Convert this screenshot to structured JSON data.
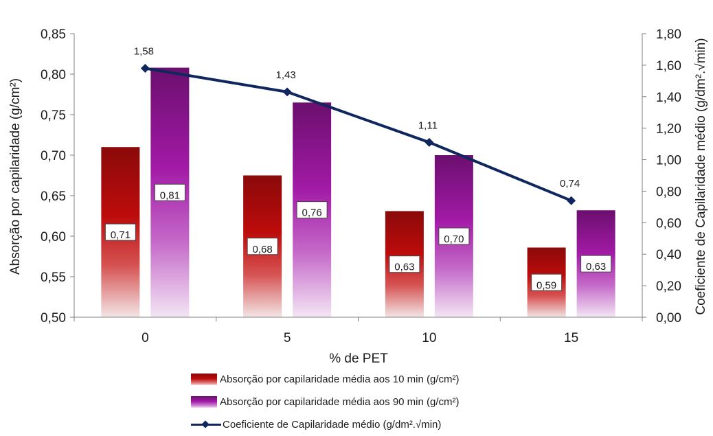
{
  "chart_data": {
    "type": "bar",
    "categories": [
      "0",
      "5",
      "10",
      "15"
    ],
    "xlabel": "% de PET",
    "ylabel": "Absorção por capilaridade (g/cm²)",
    "y2label": "Coeficiente de Capilaridade médio (g/dm².√min)",
    "ylim": [
      0.5,
      0.85
    ],
    "y2lim": [
      0,
      1.8
    ],
    "yticks": [
      "0,50",
      "0,55",
      "0,60",
      "0,65",
      "0,70",
      "0,75",
      "0,80",
      "0,85"
    ],
    "y2ticks": [
      "0,00",
      "0,20",
      "0,40",
      "0,60",
      "0,80",
      "1,00",
      "1,20",
      "1,40",
      "1,60",
      "1,80"
    ],
    "grid": false,
    "legend_position": "bottom",
    "series": [
      {
        "name": "Absorção por capilaridade média aos 10 min (g/cm²)",
        "kind": "bar",
        "axis": "left",
        "values": [
          0.71,
          0.675,
          0.631,
          0.586
        ],
        "labels": [
          "0,71",
          "0,68",
          "0,63",
          "0,59"
        ],
        "color": "#b30b0b"
      },
      {
        "name": "Absorção por capilaridade média aos 90 min (g/cm²)",
        "kind": "bar",
        "axis": "left",
        "values": [
          0.808,
          0.765,
          0.7,
          0.632
        ],
        "labels": [
          "0,81",
          "0,76",
          "0,70",
          "0,63"
        ],
        "color": "#8e1591"
      },
      {
        "name": "Coeficiente de Capilaridade médio (g/dm².√min)",
        "kind": "line",
        "axis": "right",
        "values": [
          1.58,
          1.43,
          1.11,
          0.74
        ],
        "labels": [
          "1,58",
          "1,43",
          "1,11",
          "0,74"
        ],
        "color": "#10265e"
      }
    ]
  }
}
